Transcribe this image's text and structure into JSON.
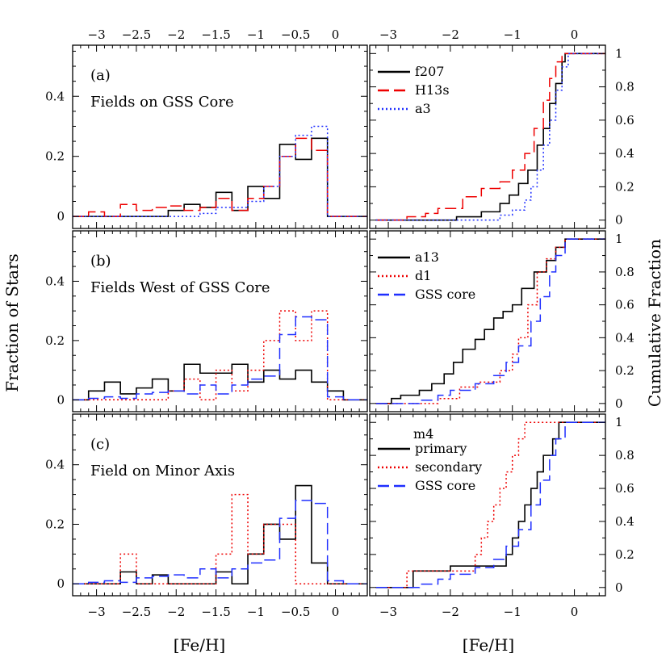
{
  "figure": {
    "xlabel": "[Fe/H]",
    "ylabel_left": "Fraction of Stars",
    "ylabel_right": "Cumulative Fraction"
  },
  "colors": {
    "black": "#000000",
    "red": "#ee0000",
    "blue": "#1f2fff"
  },
  "chart_data": [
    {
      "type": "line",
      "panel": "(a)",
      "title": "Fields on GSS Core",
      "step": "histogram",
      "xlim": [
        -3.3,
        0.4
      ],
      "ylim": [
        -0.04,
        0.57
      ],
      "xticks": [
        -3,
        -2.5,
        -2,
        -1.5,
        -1,
        -0.5,
        0
      ],
      "yticks": [
        0,
        0.2,
        0.4
      ],
      "bin_edges": [
        -3.3,
        -3.1,
        -2.9,
        -2.7,
        -2.5,
        -2.3,
        -2.1,
        -1.9,
        -1.7,
        -1.5,
        -1.3,
        -1.1,
        -0.9,
        -0.7,
        -0.5,
        -0.3,
        -0.1,
        0.1,
        0.4
      ],
      "series": [
        {
          "name": "f207",
          "color": "black",
          "dash": "solid",
          "values": [
            0,
            0,
            0,
            0,
            0,
            0,
            0.02,
            0.04,
            0.03,
            0.08,
            0.02,
            0.1,
            0.06,
            0.24,
            0.19,
            0.26,
            0,
            0
          ]
        },
        {
          "name": "H13s",
          "color": "red",
          "dash": "long",
          "values": [
            0,
            0.015,
            0,
            0.04,
            0.02,
            0.03,
            0.035,
            0.02,
            0.03,
            0.06,
            0.02,
            0.06,
            0.1,
            0.2,
            0.26,
            0.22,
            0,
            0
          ]
        },
        {
          "name": "a3",
          "color": "blue",
          "dash": "dot",
          "values": [
            0,
            0,
            0,
            0,
            0,
            0,
            0,
            0,
            0.01,
            0.03,
            0.03,
            0.05,
            0.1,
            0.2,
            0.27,
            0.3,
            0,
            0
          ]
        }
      ]
    },
    {
      "type": "line",
      "panel": "(b)",
      "title": "Fields West of GSS Core",
      "step": "histogram",
      "xlim": [
        -3.3,
        0.4
      ],
      "ylim": [
        -0.04,
        0.57
      ],
      "xticks": [
        -3,
        -2.5,
        -2,
        -1.5,
        -1,
        -0.5,
        0
      ],
      "yticks": [
        0,
        0.2,
        0.4
      ],
      "bin_edges": [
        -3.3,
        -3.1,
        -2.9,
        -2.7,
        -2.5,
        -2.3,
        -2.1,
        -1.9,
        -1.7,
        -1.5,
        -1.3,
        -1.1,
        -0.9,
        -0.7,
        -0.5,
        -0.3,
        -0.1,
        0.1,
        0.4
      ],
      "series": [
        {
          "name": "a13",
          "color": "black",
          "dash": "solid",
          "values": [
            0,
            0.03,
            0.06,
            0.02,
            0.04,
            0.07,
            0.03,
            0.12,
            0.09,
            0.09,
            0.12,
            0.06,
            0.1,
            0.07,
            0.1,
            0.06,
            0.03,
            0
          ]
        },
        {
          "name": "d1",
          "color": "red",
          "dash": "dot",
          "values": [
            0,
            0,
            0,
            0,
            0,
            0,
            0.03,
            0.07,
            0,
            0.1,
            0.03,
            0.1,
            0.2,
            0.3,
            0.2,
            0.3,
            0,
            0
          ]
        },
        {
          "name": "GSS core",
          "color": "blue",
          "dash": "long",
          "values": [
            0,
            0.005,
            0.01,
            0.005,
            0.02,
            0.025,
            0.03,
            0.02,
            0.05,
            0.02,
            0.05,
            0.07,
            0.08,
            0.22,
            0.28,
            0.27,
            0.01,
            0
          ]
        }
      ]
    },
    {
      "type": "line",
      "panel": "(c)",
      "title": "Field on Minor Axis",
      "step": "histogram",
      "xlim": [
        -3.3,
        0.4
      ],
      "ylim": [
        -0.04,
        0.57
      ],
      "xticks": [
        -3,
        -2.5,
        -2,
        -1.5,
        -1,
        -0.5,
        0
      ],
      "yticks": [
        0,
        0.2,
        0.4
      ],
      "bin_edges": [
        -3.3,
        -3.1,
        -2.9,
        -2.7,
        -2.5,
        -2.3,
        -2.1,
        -1.9,
        -1.7,
        -1.5,
        -1.3,
        -1.1,
        -0.9,
        -0.7,
        -0.5,
        -0.3,
        -0.1,
        0.1,
        0.4
      ],
      "series": [
        {
          "name": "primary",
          "color": "black",
          "dash": "solid",
          "values": [
            0,
            0,
            0,
            0.04,
            0,
            0.03,
            0,
            0,
            0,
            0.04,
            0,
            0.1,
            0.2,
            0.15,
            0.33,
            0.07,
            0,
            0
          ]
        },
        {
          "name": "secondary",
          "color": "red",
          "dash": "dot",
          "values": [
            0,
            0,
            0,
            0.1,
            0,
            0,
            0,
            0,
            0,
            0.1,
            0.3,
            0.1,
            0.2,
            0.2,
            0,
            0,
            0,
            0
          ]
        },
        {
          "name": "GSS core",
          "color": "blue",
          "dash": "long",
          "values": [
            0,
            0.005,
            0.01,
            0.005,
            0.02,
            0.025,
            0.03,
            0.02,
            0.05,
            0.02,
            0.05,
            0.07,
            0.08,
            0.22,
            0.28,
            0.27,
            0.01,
            0
          ]
        }
      ]
    },
    {
      "type": "line",
      "panel": "top-right",
      "step": "cumulative",
      "xlim": [
        -3.3,
        0.5
      ],
      "ylim": [
        -0.05,
        1.05
      ],
      "xticks": [
        -3,
        -2,
        -1,
        0
      ],
      "yticks": [
        0,
        0.2,
        0.4,
        0.6,
        0.8,
        1
      ],
      "legend": [
        "f207",
        "H13s",
        "a3"
      ],
      "series": [
        {
          "name": "f207",
          "color": "black",
          "dash": "solid",
          "x": [
            -3.2,
            -1.9,
            -1.5,
            -1.2,
            -1.05,
            -0.9,
            -0.75,
            -0.6,
            -0.5,
            -0.4,
            -0.3,
            -0.2,
            -0.15,
            0.5
          ],
          "y": [
            0,
            0.02,
            0.05,
            0.1,
            0.15,
            0.22,
            0.3,
            0.45,
            0.55,
            0.7,
            0.82,
            0.95,
            1,
            1
          ]
        },
        {
          "name": "H13s",
          "color": "red",
          "dash": "long",
          "x": [
            -3.2,
            -2.7,
            -2.4,
            -2.2,
            -1.8,
            -1.5,
            -1.2,
            -1.0,
            -0.8,
            -0.65,
            -0.5,
            -0.4,
            -0.3,
            -0.2,
            0.5
          ],
          "y": [
            0,
            0.02,
            0.04,
            0.07,
            0.14,
            0.19,
            0.23,
            0.3,
            0.4,
            0.55,
            0.72,
            0.85,
            0.95,
            1,
            1
          ]
        },
        {
          "name": "a3",
          "color": "blue",
          "dash": "dot",
          "x": [
            -3.2,
            -1.6,
            -1.2,
            -1.0,
            -0.8,
            -0.7,
            -0.6,
            -0.5,
            -0.4,
            -0.3,
            -0.2,
            -0.1,
            0.5
          ],
          "y": [
            0,
            0.0,
            0.03,
            0.06,
            0.12,
            0.2,
            0.3,
            0.45,
            0.6,
            0.78,
            0.92,
            1,
            1
          ]
        }
      ]
    },
    {
      "type": "line",
      "panel": "middle-right",
      "step": "cumulative",
      "xlim": [
        -3.3,
        0.5
      ],
      "ylim": [
        -0.05,
        1.05
      ],
      "xticks": [
        -3,
        -2,
        -1,
        0
      ],
      "yticks": [
        0,
        0.2,
        0.4,
        0.6,
        0.8,
        1
      ],
      "legend": [
        "a13",
        "d1",
        "GSS core"
      ],
      "series": [
        {
          "name": "a13",
          "color": "black",
          "dash": "solid",
          "x": [
            -3.2,
            -2.95,
            -2.8,
            -2.5,
            -2.3,
            -2.1,
            -1.95,
            -1.8,
            -1.6,
            -1.45,
            -1.3,
            -1.15,
            -1.0,
            -0.85,
            -0.65,
            -0.45,
            -0.3,
            -0.15,
            0.5
          ],
          "y": [
            0,
            0.03,
            0.05,
            0.08,
            0.12,
            0.18,
            0.25,
            0.33,
            0.39,
            0.45,
            0.52,
            0.56,
            0.6,
            0.7,
            0.8,
            0.87,
            0.95,
            1,
            1
          ]
        },
        {
          "name": "d1",
          "color": "red",
          "dash": "dot",
          "x": [
            -3.2,
            -2.2,
            -1.85,
            -1.55,
            -1.2,
            -1.0,
            -0.9,
            -0.75,
            -0.6,
            -0.45,
            -0.3,
            -0.15,
            0.5
          ],
          "y": [
            0,
            0.03,
            0.1,
            0.13,
            0.2,
            0.3,
            0.4,
            0.6,
            0.8,
            0.88,
            0.95,
            1,
            1
          ]
        },
        {
          "name": "GSS core",
          "color": "blue",
          "dash": "long",
          "x": [
            -3.2,
            -2.5,
            -2.2,
            -2.0,
            -1.6,
            -1.3,
            -1.1,
            -0.9,
            -0.7,
            -0.55,
            -0.4,
            -0.3,
            -0.15,
            0.5
          ],
          "y": [
            0,
            0.02,
            0.05,
            0.08,
            0.12,
            0.17,
            0.25,
            0.35,
            0.5,
            0.65,
            0.8,
            0.9,
            1,
            1
          ]
        }
      ]
    },
    {
      "type": "line",
      "panel": "bottom-right",
      "step": "cumulative",
      "xlim": [
        -3.3,
        0.5
      ],
      "ylim": [
        -0.05,
        1.05
      ],
      "xticks": [
        -3,
        -2,
        -1,
        0
      ],
      "yticks": [
        0,
        0.2,
        0.4,
        0.6,
        0.8,
        1
      ],
      "legend_title": "m4",
      "legend": [
        "primary",
        "secondary",
        "GSS core"
      ],
      "series": [
        {
          "name": "primary",
          "color": "black",
          "dash": "solid",
          "x": [
            -3.2,
            -2.6,
            -2.0,
            -1.55,
            -1.1,
            -1.0,
            -0.9,
            -0.8,
            -0.7,
            -0.6,
            -0.5,
            -0.35,
            -0.25,
            0.5
          ],
          "y": [
            0,
            0.1,
            0.13,
            0.13,
            0.2,
            0.3,
            0.4,
            0.5,
            0.6,
            0.7,
            0.8,
            0.9,
            1,
            1
          ]
        },
        {
          "name": "secondary",
          "color": "red",
          "dash": "dot",
          "x": [
            -3.2,
            -2.7,
            -1.6,
            -1.5,
            -1.4,
            -1.3,
            -1.2,
            -1.1,
            -1.0,
            -0.9,
            -0.8,
            -0.7,
            0.5
          ],
          "y": [
            0,
            0.1,
            0.2,
            0.3,
            0.4,
            0.5,
            0.6,
            0.7,
            0.8,
            0.9,
            1,
            1,
            1
          ]
        },
        {
          "name": "GSS core",
          "color": "blue",
          "dash": "long",
          "x": [
            -3.2,
            -2.5,
            -2.2,
            -2.0,
            -1.6,
            -1.3,
            -1.1,
            -0.9,
            -0.7,
            -0.55,
            -0.4,
            -0.3,
            -0.15,
            0.5
          ],
          "y": [
            0,
            0.02,
            0.05,
            0.08,
            0.12,
            0.17,
            0.25,
            0.35,
            0.5,
            0.65,
            0.8,
            0.9,
            1,
            1
          ]
        }
      ]
    }
  ]
}
